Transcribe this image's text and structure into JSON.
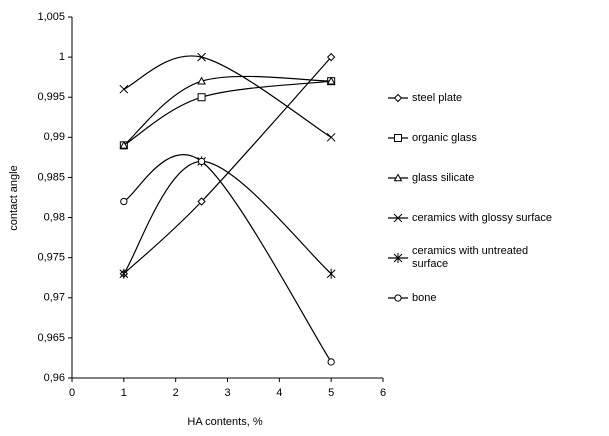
{
  "chart_data": {
    "type": "line",
    "x_label": "HA contents, %",
    "y_label": "contact angle",
    "xlim": [
      0,
      6
    ],
    "xticks": [
      0,
      1,
      2,
      3,
      4,
      5,
      6
    ],
    "ylim": [
      0.96,
      1.005
    ],
    "yticks": [
      {
        "value": 0.96,
        "label": "0,96"
      },
      {
        "value": 0.965,
        "label": "0,965"
      },
      {
        "value": 0.97,
        "label": "0,97"
      },
      {
        "value": 0.975,
        "label": "0,975"
      },
      {
        "value": 0.98,
        "label": "0,98"
      },
      {
        "value": 0.985,
        "label": "0,985"
      },
      {
        "value": 0.99,
        "label": "0,99"
      },
      {
        "value": 0.995,
        "label": "0,995"
      },
      1,
      {
        "value": 1.005,
        "label": "1,005"
      }
    ],
    "smooth": true,
    "x": [
      1,
      2.5,
      5
    ],
    "series": [
      {
        "name": "steel plate",
        "color": "#000000",
        "marker": "diamond",
        "values": [
          0.973,
          0.982,
          1.0
        ]
      },
      {
        "name": "organic glass",
        "color": "#000000",
        "marker": "square",
        "values": [
          0.989,
          0.995,
          0.997
        ]
      },
      {
        "name": "glass silicate",
        "color": "#000000",
        "marker": "triangle",
        "values": [
          0.989,
          0.997,
          0.997
        ]
      },
      {
        "name": "ceramics with glossy surface",
        "color": "#000000",
        "marker": "x",
        "values": [
          0.996,
          1.0,
          0.99
        ]
      },
      {
        "name": "ceramics with untreated surface",
        "color": "#000000",
        "marker": "asterisk",
        "values": [
          0.973,
          0.987,
          0.973
        ]
      },
      {
        "name": "bone",
        "color": "#000000",
        "marker": "circle",
        "values": [
          0.982,
          0.987,
          0.962
        ]
      }
    ]
  }
}
